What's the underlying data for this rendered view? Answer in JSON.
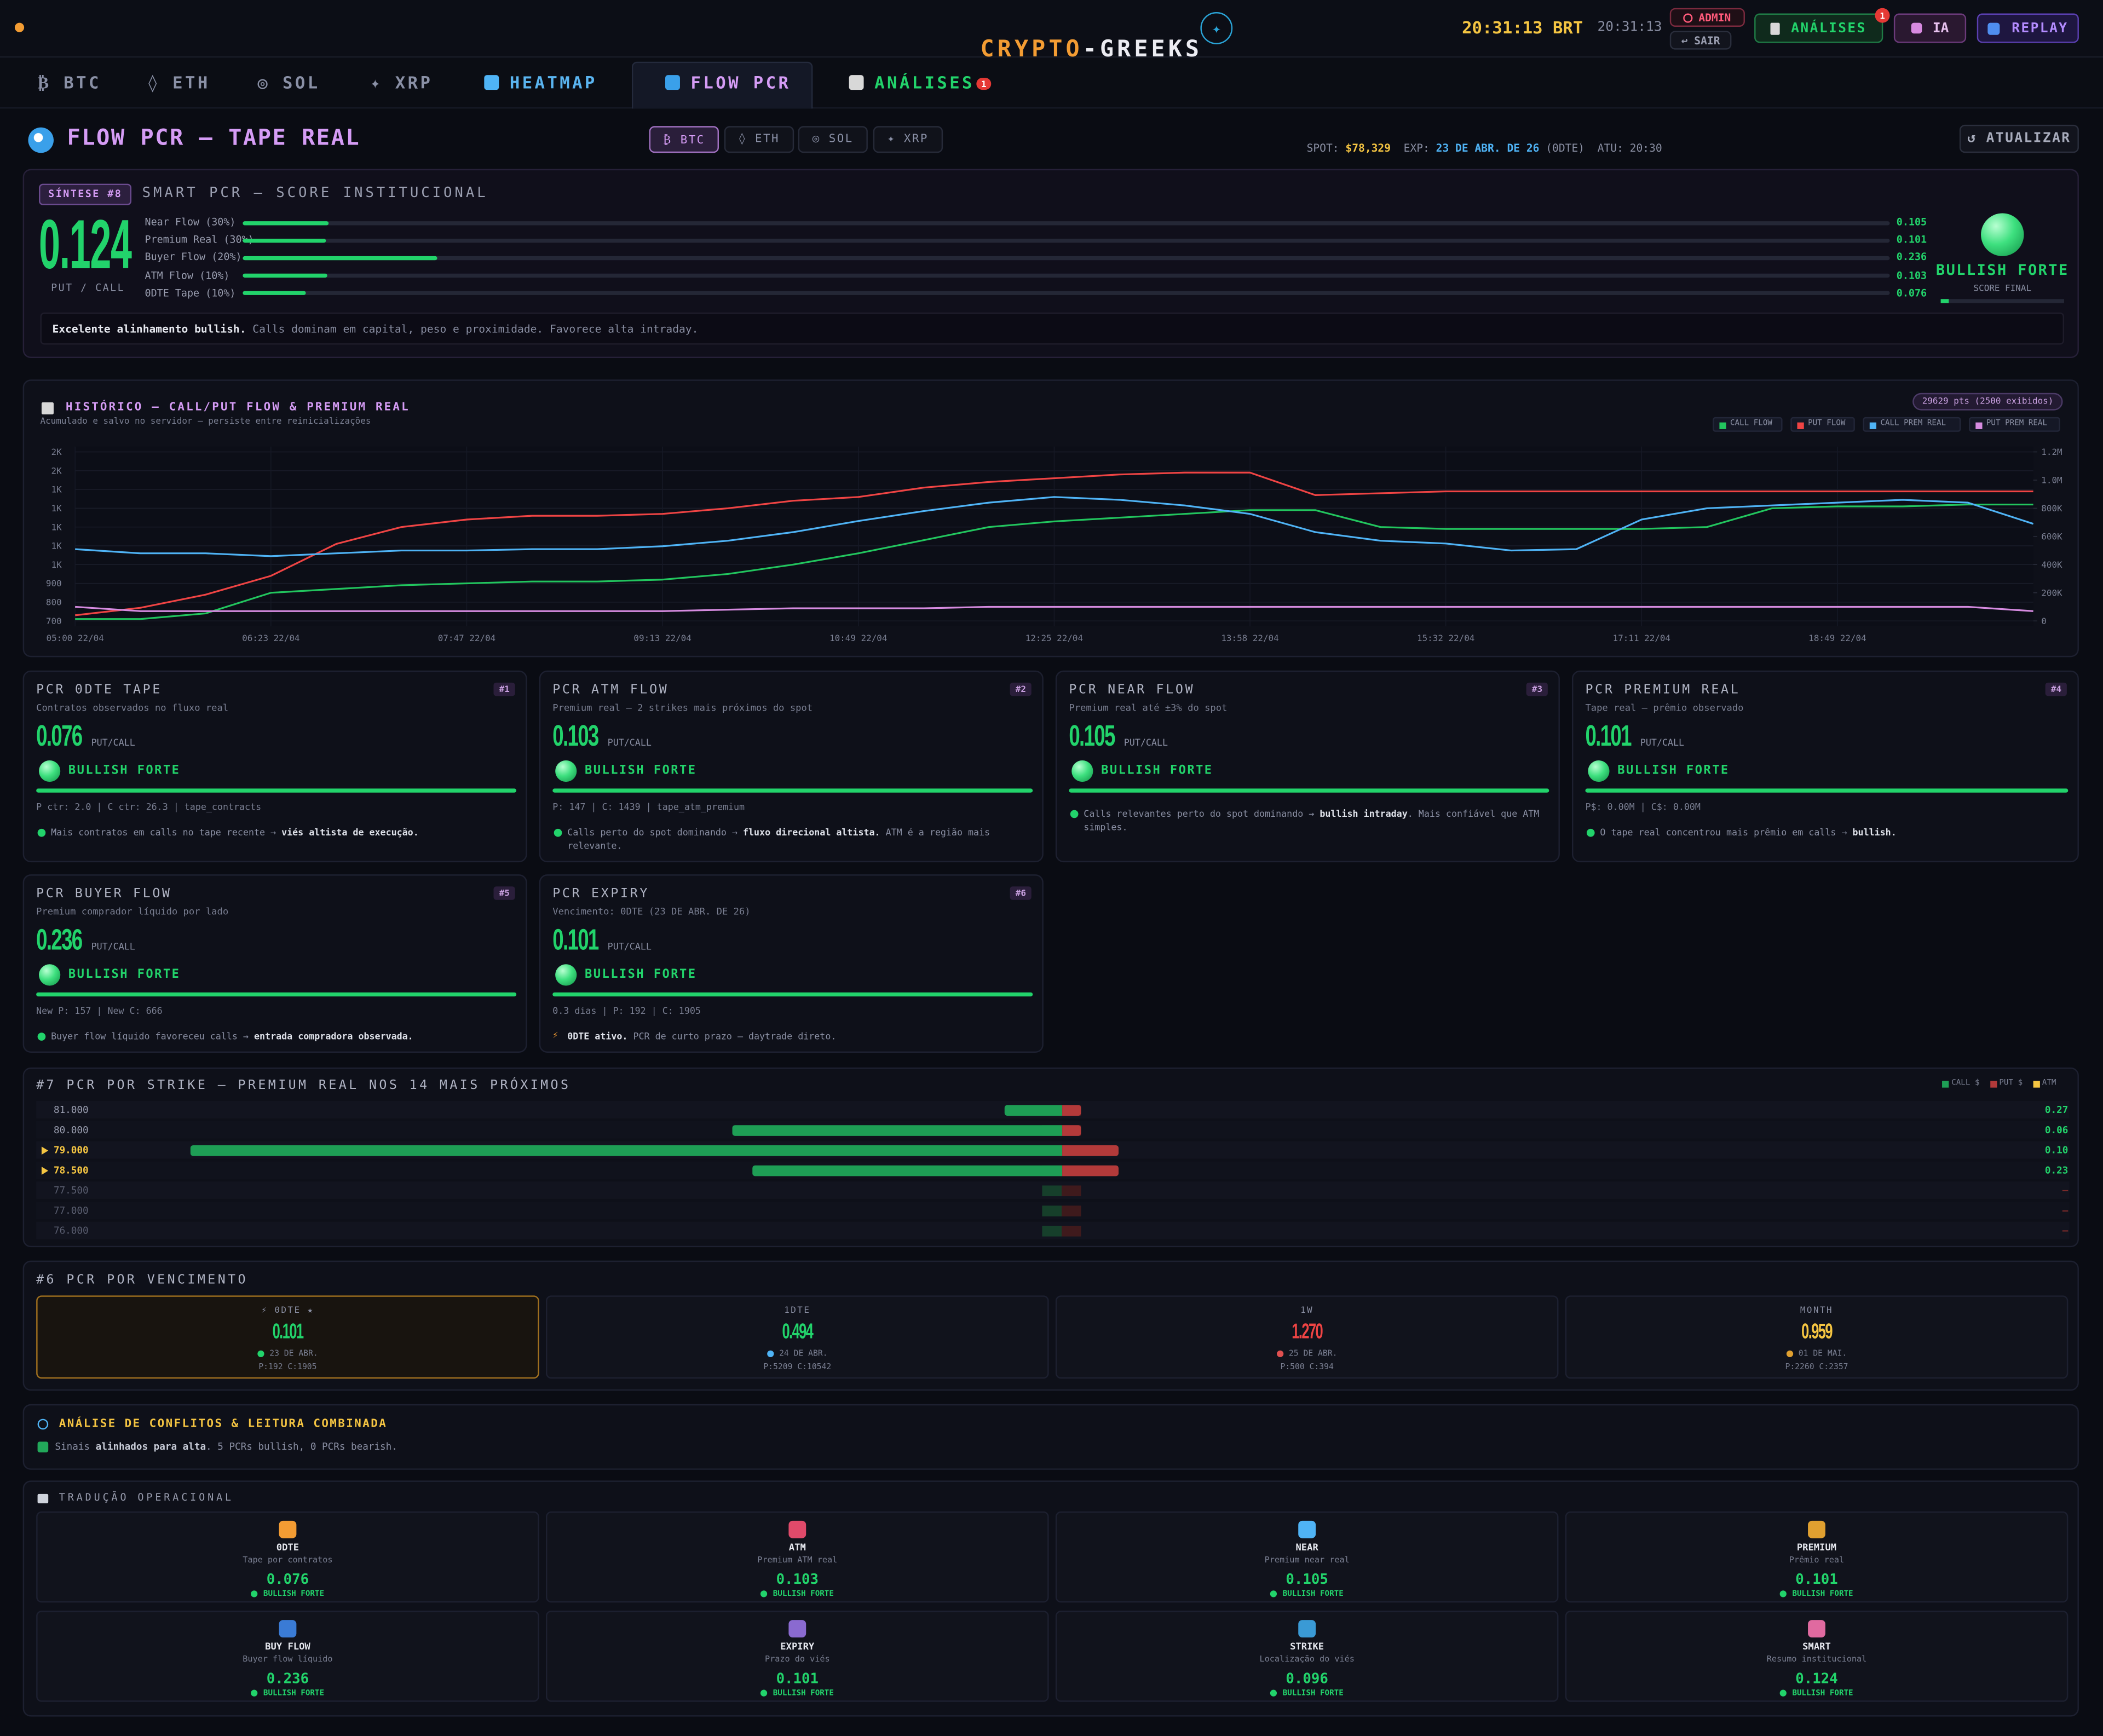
{
  "header": {
    "brand_a": "CRYPTO",
    "brand_b": "-GREEKS",
    "brand_icon": "✦",
    "clock": "20:31:13 BRT",
    "clock_small": "20:31:13",
    "admin": "ADMIN",
    "logout": "↩ SAIR",
    "analyses": "ANÁLISES",
    "analyses_badge": "1",
    "ai": "IA",
    "replay": "REPLAY"
  },
  "tabs": [
    "₿ BTC",
    "◊ ETH",
    "◎ SOL",
    "✦ XRP",
    "HEATMAP",
    "FLOW PCR",
    "ANÁLISES"
  ],
  "tabs_badge": "1",
  "page": {
    "title": "FLOW PCR — TAPE REAL",
    "assets": [
      "₿ BTC",
      "◊ ETH",
      "◎ SOL",
      "✦ XRP"
    ],
    "spot_label": "SPOT:",
    "spot": "$78,329",
    "exp_label": "EXP:",
    "exp": "23 DE ABR. DE 26",
    "exp_tag": "(0DTE)",
    "updated": "ATU: 20:30",
    "refresh": "↺ ATUALIZAR"
  },
  "smart": {
    "badge": "SÍNTESE #8",
    "title": "SMART PCR — SCORE INSTITUCIONAL",
    "value": 0.124,
    "unit": "PUT / CALL",
    "components": [
      {
        "label": "Near Flow (30%)",
        "value": 0.105
      },
      {
        "label": "Premium Real (30%)",
        "value": 0.101
      },
      {
        "label": "Buyer Flow (20%)",
        "value": 0.236
      },
      {
        "label": "ATM Flow (10%)",
        "value": 0.103
      },
      {
        "label": "0DTE Tape (10%)",
        "value": 0.076
      }
    ],
    "signal": "BULLISH FORTE",
    "signal_sub": "SCORE FINAL",
    "summary": [
      {
        "text": "Excelente alinhamento bullish.",
        "bold": true
      },
      {
        "text": " Calls dominam em capital, peso e proximidade. Favorece alta intraday."
      }
    ]
  },
  "chart_data": {
    "type": "line",
    "title": "HISTÓRICO — CALL/PUT FLOW & PREMIUM REAL",
    "subtitle": "Acumulado e salvo no servidor — persiste entre reinicializações",
    "badge": "29629 pts (2500 exibidos)",
    "categories": [
      "05:00 22/04",
      null,
      null,
      "06:23 22/04",
      null,
      null,
      "07:47 22/04",
      null,
      null,
      "09:13 22/04",
      null,
      null,
      "10:49 22/04",
      null,
      null,
      "12:25 22/04",
      null,
      null,
      "13:58 22/04",
      null,
      null,
      "15:32 22/04",
      null,
      null,
      "17:11 22/04",
      null,
      null,
      "18:49 22/04",
      null,
      null,
      null
    ],
    "series": [
      {
        "name": "CALL FLOW",
        "color": "#22c55e",
        "axis": "y",
        "values": [
          710,
          710,
          740,
          850,
          870,
          890,
          900,
          910,
          910,
          920,
          950,
          1000,
          1060,
          1130,
          1200,
          1230,
          1250,
          1270,
          1290,
          1290,
          1200,
          1190,
          1190,
          1190,
          1190,
          1200,
          1300,
          1310,
          1310,
          1320,
          1320
        ]
      },
      {
        "name": "PUT FLOW",
        "color": "#ef4444",
        "axis": "y",
        "values": [
          730,
          770,
          840,
          940,
          1110,
          1200,
          1240,
          1260,
          1260,
          1270,
          1300,
          1340,
          1360,
          1410,
          1440,
          1460,
          1480,
          1490,
          1490,
          1370,
          1380,
          1390,
          1390,
          1390,
          1390,
          1390,
          1390,
          1390,
          1390,
          1390,
          1390
        ]
      },
      {
        "name": "CALL PREM REAL",
        "color": "#4fb3f5",
        "axis": "y2",
        "values": [
          510000,
          480000,
          480000,
          460000,
          480000,
          500000,
          500000,
          510000,
          510000,
          530000,
          570000,
          630000,
          710000,
          780000,
          840000,
          880000,
          860000,
          820000,
          760000,
          630000,
          570000,
          550000,
          500000,
          510000,
          720000,
          800000,
          820000,
          840000,
          860000,
          840000,
          690000
        ]
      },
      {
        "name": "PUT PREM REAL",
        "color": "#d68be0",
        "axis": "y2",
        "values": [
          100000,
          70000,
          70000,
          70000,
          70000,
          70000,
          70000,
          70000,
          70000,
          70000,
          80000,
          90000,
          90000,
          90000,
          100000,
          100000,
          100000,
          100000,
          100000,
          100000,
          100000,
          100000,
          100000,
          100000,
          100000,
          100000,
          100000,
          100000,
          100000,
          100000,
          70000
        ]
      }
    ],
    "ylim": [
      700,
      1600
    ],
    "yticks": [
      700,
      800,
      900,
      {
        "value": 1000,
        "label": "1K"
      },
      {
        "value": 1100,
        "label": "1K"
      },
      {
        "value": 1200,
        "label": "1K"
      },
      {
        "value": 1300,
        "label": "1K"
      },
      {
        "value": 1400,
        "label": "1K"
      },
      {
        "value": 1500,
        "label": "2K"
      },
      {
        "value": 1600,
        "label": "2K"
      }
    ],
    "y2lim": [
      0,
      1200000
    ],
    "y2ticks": [
      0,
      {
        "value": 200000,
        "label": "200K"
      },
      {
        "value": 400000,
        "label": "400K"
      },
      {
        "value": 600000,
        "label": "600K"
      },
      {
        "value": 800000,
        "label": "800K"
      },
      {
        "value": 1000000,
        "label": "1.0M"
      },
      {
        "value": 1200000,
        "label": "1.2M"
      }
    ],
    "grid": true,
    "legend": "top-right"
  },
  "pcr_unit": "PUT/CALL",
  "pcr_cards": [
    {
      "title": "PCR 0DTE TAPE",
      "num": "#1",
      "subtitle": "Contratos observados no fluxo real",
      "value": 0.076,
      "signal": "BULLISH FORTE",
      "stats": "P ctr: 2.0 | C ctr: 26.3 | tape_contracts",
      "note": [
        {
          "text": "Mais contratos em calls no tape recente → "
        },
        {
          "text": "viés altista de execução.",
          "bold": true
        }
      ]
    },
    {
      "title": "PCR ATM FLOW",
      "num": "#2",
      "subtitle": "Premium real — 2 strikes mais próximos do spot",
      "value": 0.103,
      "signal": "BULLISH FORTE",
      "stats": "P: 147 | C: 1439 | tape_atm_premium",
      "note": [
        {
          "text": "Calls perto do spot dominando → "
        },
        {
          "text": "fluxo direcional altista.",
          "bold": true
        },
        {
          "text": " ATM é a região mais relevante."
        }
      ]
    },
    {
      "title": "PCR NEAR FLOW",
      "num": "#3",
      "subtitle": "Premium real até ±3% do spot",
      "value": 0.105,
      "signal": "BULLISH FORTE",
      "note": [
        {
          "text": "Calls relevantes perto do spot dominando → "
        },
        {
          "text": "bullish intraday",
          "bold": true
        },
        {
          "text": ". Mais confiável que ATM simples."
        }
      ]
    },
    {
      "title": "PCR PREMIUM REAL",
      "num": "#4",
      "subtitle": "Tape real — prêmio observado",
      "value": 0.101,
      "signal": "BULLISH FORTE",
      "stats": "P$: 0.00M | C$: 0.00M",
      "note": [
        {
          "text": "O tape real concentrou mais prêmio em calls → "
        },
        {
          "text": "bullish.",
          "bold": true
        }
      ]
    },
    {
      "title": "PCR BUYER FLOW",
      "num": "#5",
      "subtitle": "Premium comprador líquido por lado",
      "value": 0.236,
      "signal": "BULLISH FORTE",
      "stats": "New P: 157 | New C: 666",
      "note": [
        {
          "text": "Buyer flow líquido favoreceu calls → "
        },
        {
          "text": "entrada compradora observada.",
          "bold": true
        }
      ]
    },
    {
      "title": "PCR EXPIRY",
      "num": "#6",
      "subtitle": "Vencimento: 0DTE (23 DE ABR. DE 26)",
      "value": 0.101,
      "signal": "BULLISH FORTE",
      "stats": "0.3 dias | P: 192 | C: 1905",
      "icon": "⚡",
      "note": [
        {
          "text": "0DTE ativo.",
          "bold": true
        },
        {
          "text": " PCR de curto prazo — daytrade direto."
        }
      ]
    }
  ],
  "strike": {
    "title": "#7 PCR POR STRIKE — PREMIUM REAL NOS 14 MAIS PRÓXIMOS",
    "legend": [
      {
        "label": "CALL $",
        "color": "#1e9e55"
      },
      {
        "label": "PUT $",
        "color": "#b33a3a"
      },
      {
        "label": "ATM",
        "color": "#f5c542"
      }
    ],
    "rows": [
      {
        "strike": "81.000",
        "call": 43,
        "put": 14,
        "pcr": 0.27
      },
      {
        "strike": "80.000",
        "call": 246,
        "put": 14,
        "pcr": 0.06
      },
      {
        "strike": "79.000",
        "atm": true,
        "call": 650,
        "put": 42,
        "pcr": 0.1,
        "pcr_label": "0.10"
      },
      {
        "strike": "78.500",
        "atm": true,
        "call": 231,
        "put": 42,
        "pcr": 0.23
      },
      {
        "strike": "77.500",
        "pcr_label": "—"
      },
      {
        "strike": "77.000",
        "pcr_label": "—"
      },
      {
        "strike": "76.000",
        "pcr_label": "—"
      }
    ]
  },
  "expiry": {
    "title": "#6 PCR POR VENCIMENTO",
    "items": [
      {
        "label": "⚡ 0DTE ★",
        "value": 0.101,
        "color": "#22d36b",
        "date": "23 DE ABR.",
        "counts": "P:192 C:1905",
        "active": true
      },
      {
        "label": "1DTE",
        "value": 0.494,
        "color": "#22d36b",
        "date": "24 DE ABR.",
        "counts": "P:5209 C:10542"
      },
      {
        "label": "1W",
        "value": 1.27,
        "value_label": "1.270",
        "color": "#ef4444",
        "date": "25 DE ABR.",
        "counts": "P:500 C:394"
      },
      {
        "label": "MONTH",
        "value": 0.959,
        "color": "#f5c542",
        "date": "01 DE MAI.",
        "counts": "P:2260 C:2357"
      }
    ]
  },
  "conflicts": {
    "title": "ANÁLISE DE CONFLITOS & LEITURA COMBINADA",
    "text": [
      {
        "text": "Sinais "
      },
      {
        "text": "alinhados para alta",
        "bold": true
      },
      {
        "text": ". 5 PCRs bullish, 0 PCRs bearish."
      }
    ]
  },
  "translation": {
    "title": "TRADUÇÃO OPERACIONAL",
    "items": [
      {
        "name": "0DTE",
        "desc": "Tape por contratos",
        "value": 0.076,
        "signal": "BULLISH FORTE"
      },
      {
        "name": "ATM",
        "desc": "Premium ATM real",
        "value": 0.103,
        "signal": "BULLISH FORTE"
      },
      {
        "name": "NEAR",
        "desc": "Premium near real",
        "value": 0.105,
        "signal": "BULLISH FORTE"
      },
      {
        "name": "PREMIUM",
        "desc": "Prêmio real",
        "value": 0.101,
        "signal": "BULLISH FORTE"
      },
      {
        "name": "BUY FLOW",
        "desc": "Buyer flow líquido",
        "value": 0.236,
        "signal": "BULLISH FORTE"
      },
      {
        "name": "EXPIRY",
        "desc": "Prazo do viés",
        "value": 0.101,
        "signal": "BULLISH FORTE"
      },
      {
        "name": "STRIKE",
        "desc": "Localização do viés",
        "value": 0.096,
        "signal": "BULLISH FORTE"
      },
      {
        "name": "SMART",
        "desc": "Resumo institucional",
        "value": 0.124,
        "signal": "BULLISH FORTE"
      }
    ]
  }
}
